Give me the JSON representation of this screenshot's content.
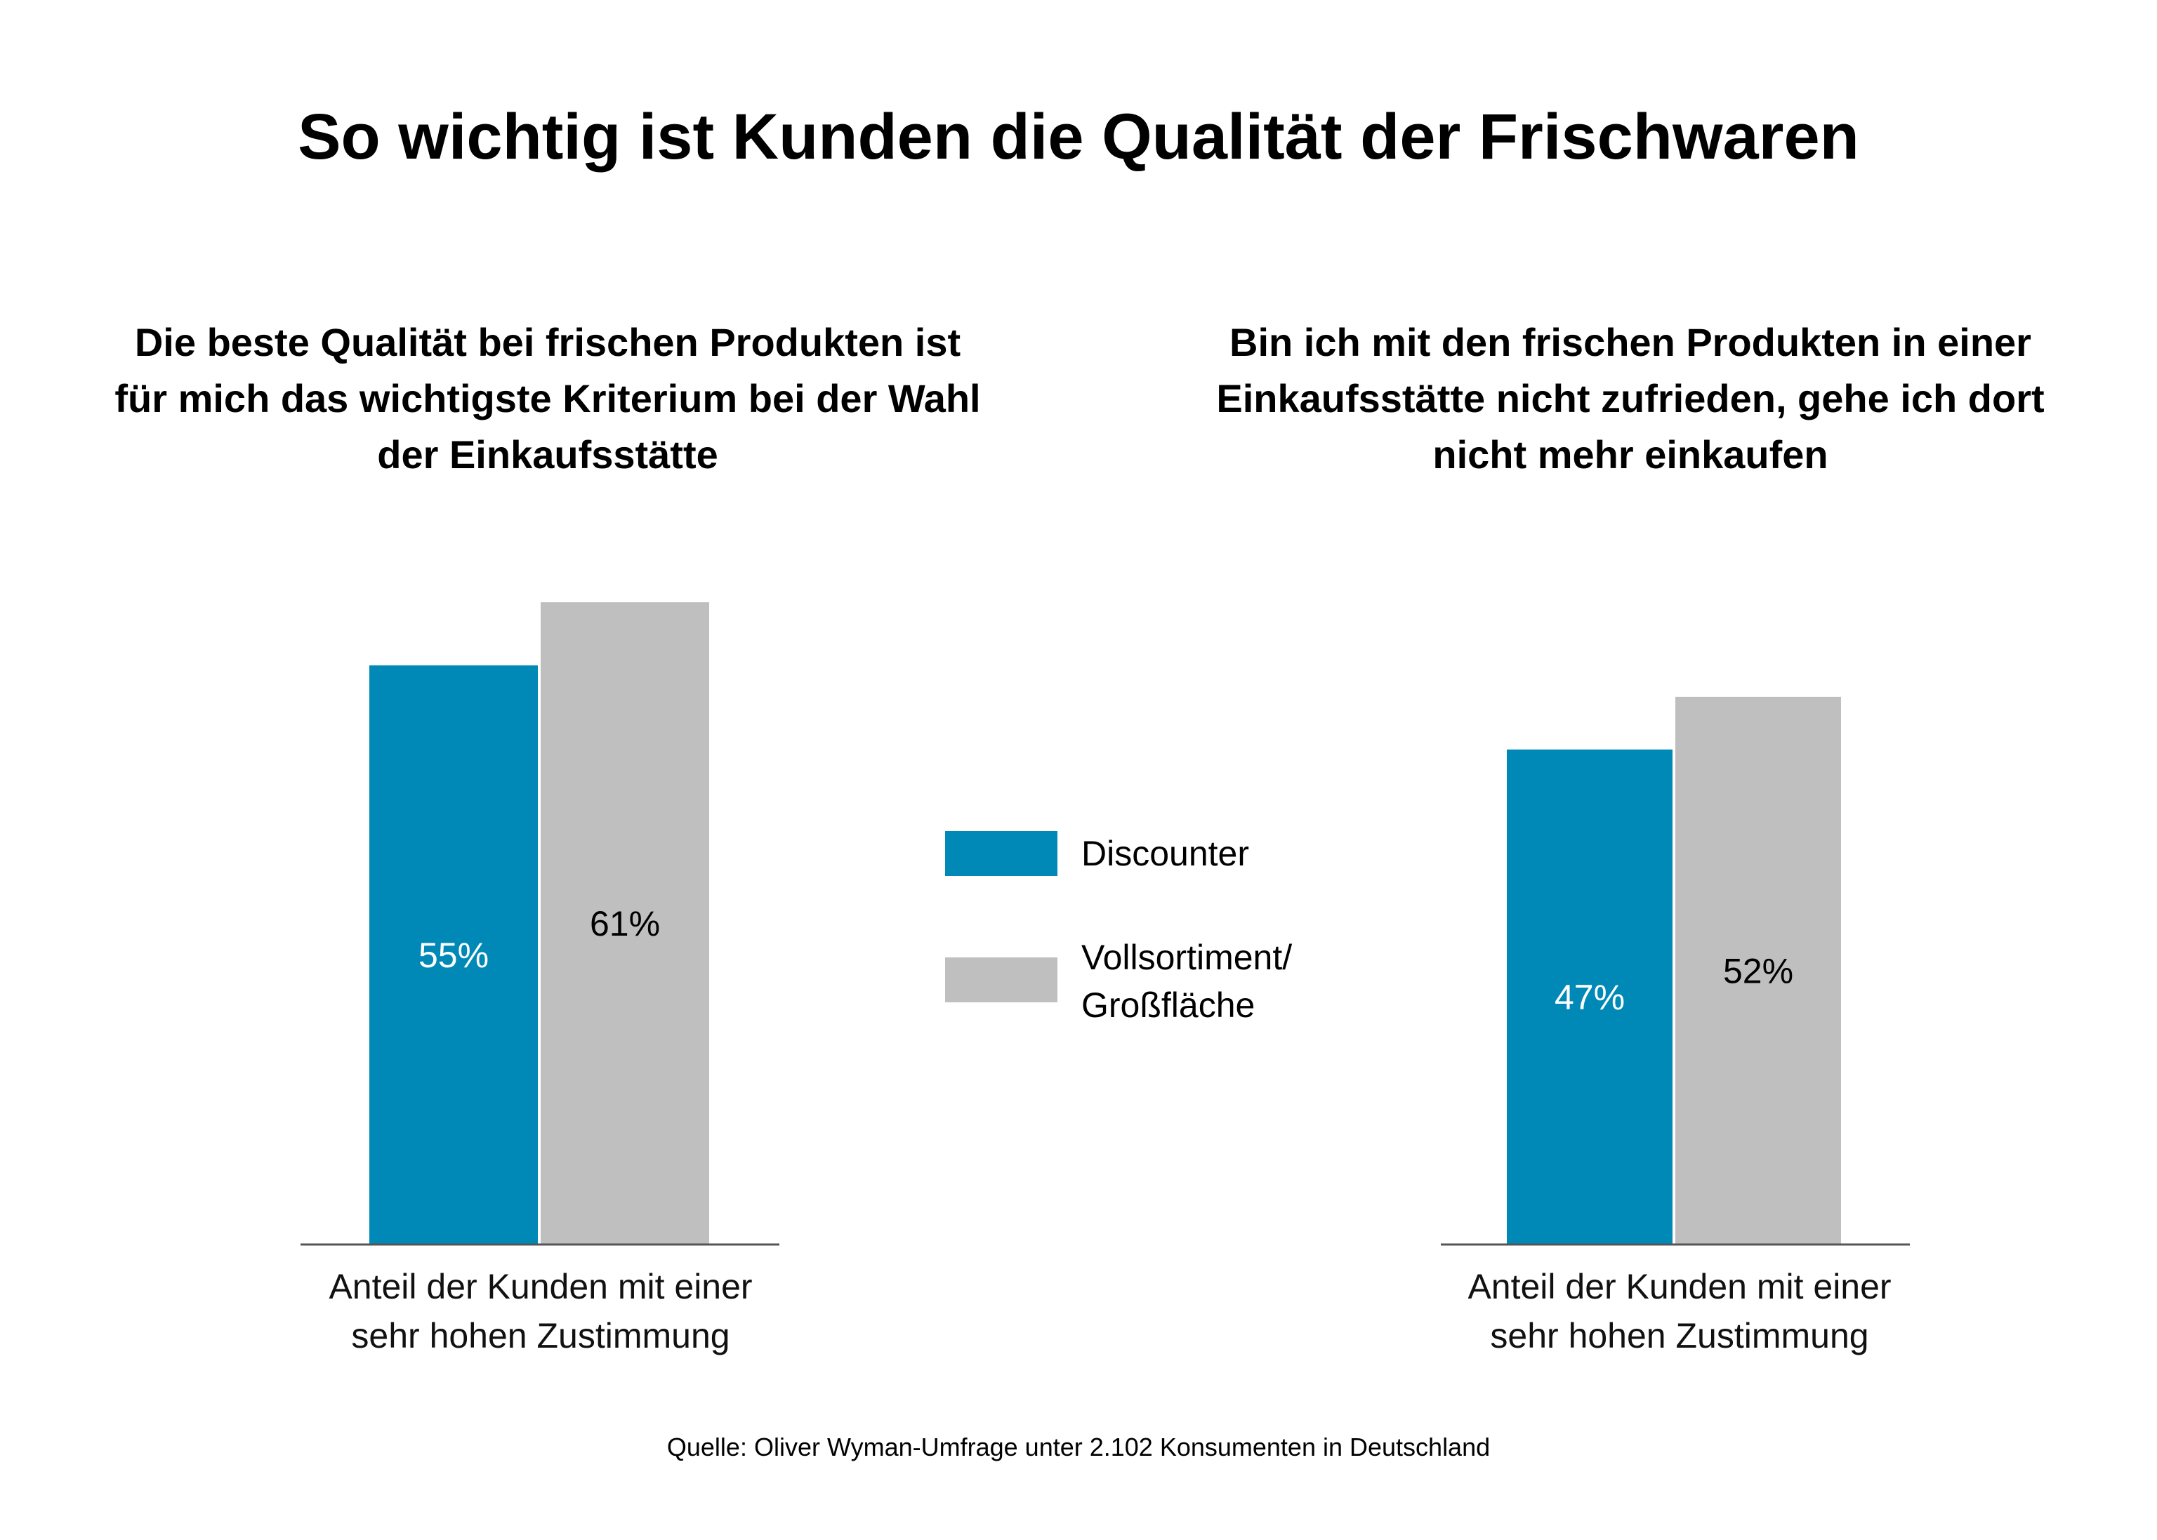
{
  "title": "So wichtig ist Kunden die Qualität der Frischwaren",
  "source": "Quelle: Oliver Wyman-Umfrage unter 2.102 Konsumenten in Deutschland",
  "colors": {
    "discounter": "#0089B7",
    "vollsortiment": "#BFBFBF",
    "axis": "#555555"
  },
  "legend": [
    {
      "label": "Discounter",
      "color": "#0089B7"
    },
    {
      "label": "Vollsortiment/\nGroßfläche",
      "color": "#BFBFBF"
    }
  ],
  "chart_data": [
    {
      "type": "bar",
      "title": "Die beste Qualität bei frischen Produkten ist\nfür mich das wichtigste Kriterium bei der Wahl\nder Einkaufsstätte",
      "categories": [
        "Anteil der Kunden mit einer\nsehr hohen Zustimmung"
      ],
      "series": [
        {
          "name": "Discounter",
          "values": [
            55
          ],
          "labels": [
            "55%"
          ],
          "label_color": "#ffffff"
        },
        {
          "name": "Vollsortiment/\nGroßfläche",
          "values": [
            61
          ],
          "labels": [
            "61%"
          ],
          "label_color": "#000000"
        }
      ],
      "ylim": [
        0,
        61
      ],
      "grid": false
    },
    {
      "type": "bar",
      "title": "Bin ich mit den frischen Produkten in einer\nEinkaufsstätte nicht zufrieden, gehe ich dort\nnicht mehr einkaufen",
      "categories": [
        "Anteil der Kunden mit einer\nsehr hohen Zustimmung"
      ],
      "series": [
        {
          "name": "Discounter",
          "values": [
            47
          ],
          "labels": [
            "47%"
          ],
          "label_color": "#ffffff"
        },
        {
          "name": "Vollsortiment/\nGroßfläche",
          "values": [
            52
          ],
          "labels": [
            "52%"
          ],
          "label_color": "#000000"
        }
      ],
      "ylim": [
        0,
        61
      ],
      "grid": false
    }
  ]
}
